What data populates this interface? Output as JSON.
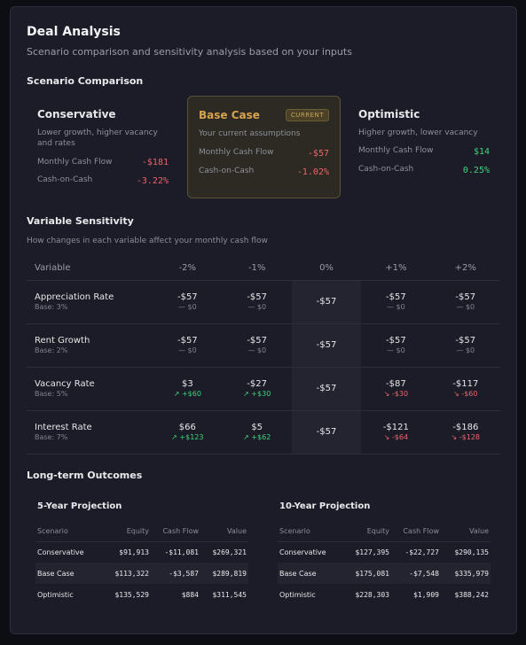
{
  "header": {
    "title": "Deal Analysis",
    "subtitle": "Scenario comparison and sensitivity analysis based on your inputs"
  },
  "scenario_comparison": {
    "heading": "Scenario Comparison",
    "cards": [
      {
        "name": "Conservative",
        "desc": "Lower growth, higher vacancy and rates",
        "cf_label": "Monthly Cash Flow",
        "cf_value": "-$181",
        "coc_label": "Cash-on-Cash",
        "coc_value": "-3.22%",
        "name_color": "#e8e9ec"
      },
      {
        "name": "Base Case",
        "badge": "CURRENT",
        "desc": "Your current assumptions",
        "cf_label": "Monthly Cash Flow",
        "cf_value": "-$57",
        "coc_label": "Cash-on-Cash",
        "coc_value": "-1.02%",
        "name_color": "#d8a24e"
      },
      {
        "name": "Optimistic",
        "desc": "Higher growth, lower vacancy",
        "cf_label": "Monthly Cash Flow",
        "cf_value": "$14",
        "coc_label": "Cash-on-Cash",
        "coc_value": "0.25%",
        "name_color": "#e8e9ec"
      }
    ]
  },
  "sensitivity": {
    "heading": "Variable Sensitivity",
    "subheading": "How changes in each variable affect your monthly cash flow",
    "columns": [
      "Variable",
      "-2%",
      "-1%",
      "0%",
      "+1%",
      "+2%"
    ],
    "rows": [
      {
        "name": "Appreciation Rate",
        "base": "Base: 3%",
        "cells": [
          {
            "v": "-$57",
            "d": "— $0"
          },
          {
            "v": "-$57",
            "d": "— $0"
          },
          {
            "v": "-$57"
          },
          {
            "v": "-$57",
            "d": "— $0"
          },
          {
            "v": "-$57",
            "d": "— $0"
          }
        ]
      },
      {
        "name": "Rent Growth",
        "base": "Base: 2%",
        "cells": [
          {
            "v": "-$57",
            "d": "— $0"
          },
          {
            "v": "-$57",
            "d": "— $0"
          },
          {
            "v": "-$57"
          },
          {
            "v": "-$57",
            "d": "— $0"
          },
          {
            "v": "-$57",
            "d": "— $0"
          }
        ]
      },
      {
        "name": "Vacancy Rate",
        "base": "Base: 5%",
        "cells": [
          {
            "v": "$3",
            "d": "↗ +$60"
          },
          {
            "v": "-$27",
            "d": "↗ +$30"
          },
          {
            "v": "-$57"
          },
          {
            "v": "-$87",
            "d": "↘ -$30"
          },
          {
            "v": "-$117",
            "d": "↘ -$60"
          }
        ]
      },
      {
        "name": "Interest Rate",
        "base": "Base: 7%",
        "cells": [
          {
            "v": "$66",
            "d": "↗ +$123"
          },
          {
            "v": "$5",
            "d": "↗ +$62"
          },
          {
            "v": "-$57"
          },
          {
            "v": "-$121",
            "d": "↘ -$64"
          },
          {
            "v": "-$186",
            "d": "↘ -$128"
          }
        ]
      }
    ]
  },
  "long_term": {
    "heading": "Long-term Outcomes",
    "projections": [
      {
        "title": "5-Year Projection",
        "columns": [
          "Scenario",
          "Equity",
          "Cash Flow",
          "Value"
        ],
        "rows": [
          [
            "Conservative",
            "$91,913",
            "-$11,081",
            "$269,321"
          ],
          [
            "Base Case",
            "$113,322",
            "-$3,587",
            "$289,819"
          ],
          [
            "Optimistic",
            "$135,529",
            "$884",
            "$311,545"
          ]
        ]
      },
      {
        "title": "10-Year Projection",
        "columns": [
          "Scenario",
          "Equity",
          "Cash Flow",
          "Value"
        ],
        "rows": [
          [
            "Conservative",
            "$127,395",
            "-$22,727",
            "$290,135"
          ],
          [
            "Base Case",
            "$175,081",
            "-$7,548",
            "$335,979"
          ],
          [
            "Optimistic",
            "$228,303",
            "$1,909",
            "$388,242"
          ]
        ]
      }
    ]
  }
}
